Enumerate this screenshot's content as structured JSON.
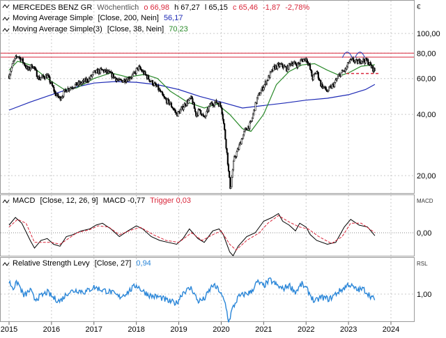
{
  "currency_symbol": "€",
  "price_panel": {
    "instrument": "MERCEDES BENZ GR",
    "interval": "Wöchentlich",
    "ohlc": {
      "o_label": "o 66,98",
      "h_label": "h 67,27",
      "l_label": "l 65,15",
      "c_label": "c 65,46",
      "change": "-1,87",
      "change_pct": "-2,78%"
    },
    "legend": [
      {
        "label": "Moving Average Simple",
        "params": "[Close, 200, Nein]",
        "value": "56,17",
        "color": "#1e2ab5"
      },
      {
        "label": "Moving Average Simple(3)",
        "params": "[Close, 38, Nein]",
        "value": "70,23",
        "color": "#2a8a2a"
      }
    ],
    "colors": {
      "up": "#ffffff",
      "down": "#000000",
      "sma200": "#1e2ab5",
      "sma38": "#2a8a2a",
      "resistance": "#d9263a",
      "support": "#d9263a",
      "pattern": "#2a3fb5",
      "change": "#d9263a"
    }
  },
  "macd_panel": {
    "label": "MACD",
    "params": "[Close, 12, 26, 9]",
    "value_label": "MACD -0,77",
    "trigger_label": "Trigger 0,03",
    "axis_title": "MACD",
    "colors": {
      "macd": "#000000",
      "trigger": "#d9263a",
      "zero": "#888888"
    }
  },
  "rsl_panel": {
    "label": "Relative Strength Levy",
    "params": "[Close, 27]",
    "value": "0,94",
    "axis_title": "RSL",
    "colors": {
      "line": "#2a86d8",
      "value": "#2a86d8"
    }
  },
  "chart_data": [
    {
      "type": "candlestick",
      "title": "MERCEDES BENZ GR Wöchentlich",
      "y_scale": "log",
      "ylim": [
        15,
        120
      ],
      "y_ticks": [
        "100,00",
        "80,00",
        "60,00",
        "40,00",
        "20,00"
      ],
      "y_tick_values": [
        100,
        80,
        60,
        40,
        20
      ],
      "x_ticks": [
        "2015",
        "2016",
        "2017",
        "2018",
        "2019",
        "2020",
        "2021",
        "2022",
        "2023",
        "2024"
      ],
      "x_range": [
        2015.0,
        2024.55
      ],
      "close_path": [
        [
          2015.0,
          62
        ],
        [
          2015.1,
          72
        ],
        [
          2015.2,
          78
        ],
        [
          2015.3,
          74
        ],
        [
          2015.45,
          66
        ],
        [
          2015.55,
          70
        ],
        [
          2015.7,
          60
        ],
        [
          2015.9,
          62
        ],
        [
          2016.0,
          56
        ],
        [
          2016.1,
          50
        ],
        [
          2016.2,
          48
        ],
        [
          2016.35,
          53
        ],
        [
          2016.5,
          55
        ],
        [
          2016.7,
          57
        ],
        [
          2016.9,
          60
        ],
        [
          2017.0,
          64
        ],
        [
          2017.2,
          66
        ],
        [
          2017.4,
          63
        ],
        [
          2017.6,
          58
        ],
        [
          2017.8,
          60
        ],
        [
          2017.95,
          63
        ],
        [
          2018.0,
          66
        ],
        [
          2018.05,
          68
        ],
        [
          2018.2,
          63
        ],
        [
          2018.35,
          58
        ],
        [
          2018.5,
          54
        ],
        [
          2018.65,
          48
        ],
        [
          2018.8,
          45
        ],
        [
          2018.95,
          40
        ],
        [
          2019.05,
          42
        ],
        [
          2019.15,
          45
        ],
        [
          2019.3,
          48
        ],
        [
          2019.4,
          40
        ],
        [
          2019.5,
          42
        ],
        [
          2019.6,
          38
        ],
        [
          2019.75,
          45
        ],
        [
          2019.9,
          46
        ],
        [
          2020.0,
          44
        ],
        [
          2020.1,
          30
        ],
        [
          2020.18,
          20
        ],
        [
          2020.22,
          17
        ],
        [
          2020.3,
          24
        ],
        [
          2020.4,
          27
        ],
        [
          2020.55,
          33
        ],
        [
          2020.7,
          36
        ],
        [
          2020.85,
          48
        ],
        [
          2021.0,
          55
        ],
        [
          2021.1,
          60
        ],
        [
          2021.25,
          68
        ],
        [
          2021.4,
          70
        ],
        [
          2021.55,
          67
        ],
        [
          2021.65,
          72
        ],
        [
          2021.8,
          70
        ],
        [
          2021.9,
          74
        ],
        [
          2022.0,
          75
        ],
        [
          2022.05,
          72
        ],
        [
          2022.15,
          60
        ],
        [
          2022.25,
          65
        ],
        [
          2022.35,
          56
        ],
        [
          2022.5,
          52
        ],
        [
          2022.65,
          56
        ],
        [
          2022.8,
          63
        ],
        [
          2022.95,
          67
        ],
        [
          2023.0,
          72
        ],
        [
          2023.1,
          74
        ],
        [
          2023.2,
          72
        ],
        [
          2023.3,
          74
        ],
        [
          2023.45,
          73
        ],
        [
          2023.55,
          68
        ],
        [
          2023.62,
          65.46
        ]
      ],
      "sma200_path": [
        [
          2015.0,
          42
        ],
        [
          2015.5,
          46
        ],
        [
          2016.0,
          50
        ],
        [
          2016.5,
          54
        ],
        [
          2017.0,
          57
        ],
        [
          2017.5,
          58
        ],
        [
          2018.0,
          57.5
        ],
        [
          2018.5,
          56
        ],
        [
          2019.0,
          53
        ],
        [
          2019.5,
          49
        ],
        [
          2020.0,
          46
        ],
        [
          2020.5,
          43
        ],
        [
          2020.9,
          44
        ],
        [
          2021.5,
          45.5
        ],
        [
          2022.0,
          47
        ],
        [
          2022.5,
          48
        ],
        [
          2023.0,
          50
        ],
        [
          2023.4,
          53
        ],
        [
          2023.62,
          56.17
        ]
      ],
      "sma38_path": [
        [
          2015.0,
          66
        ],
        [
          2015.2,
          73
        ],
        [
          2015.5,
          70
        ],
        [
          2015.9,
          60
        ],
        [
          2016.3,
          53
        ],
        [
          2016.6,
          54
        ],
        [
          2017.0,
          60
        ],
        [
          2017.4,
          64
        ],
        [
          2017.8,
          61
        ],
        [
          2018.2,
          63
        ],
        [
          2018.5,
          60
        ],
        [
          2018.8,
          52
        ],
        [
          2019.2,
          46
        ],
        [
          2019.6,
          43
        ],
        [
          2019.9,
          45
        ],
        [
          2020.2,
          40
        ],
        [
          2020.5,
          34
        ],
        [
          2020.7,
          33
        ],
        [
          2021.0,
          40
        ],
        [
          2021.3,
          56
        ],
        [
          2021.6,
          65
        ],
        [
          2021.9,
          70
        ],
        [
          2022.2,
          71
        ],
        [
          2022.5,
          66
        ],
        [
          2022.8,
          62
        ],
        [
          2023.0,
          64
        ],
        [
          2023.3,
          69
        ],
        [
          2023.62,
          70.23
        ]
      ],
      "resistance_levels": [
        80,
        76.5
      ],
      "support_level": 63.5,
      "support_x": [
        2022.95,
        2023.62
      ]
    },
    {
      "type": "line",
      "title": "MACD [Close, 12, 26, 9]",
      "y_ticks": [
        "0,00"
      ],
      "y_tick_values": [
        0
      ],
      "ylim": [
        -7,
        7
      ],
      "series": [
        {
          "name": "MACD",
          "values": [
            [
              2015.0,
              2
            ],
            [
              2015.15,
              4
            ],
            [
              2015.3,
              2.5
            ],
            [
              2015.5,
              -2
            ],
            [
              2015.6,
              -4
            ],
            [
              2015.75,
              -2
            ],
            [
              2015.9,
              -1.5
            ],
            [
              2016.05,
              -3
            ],
            [
              2016.2,
              -3.5
            ],
            [
              2016.35,
              -1
            ],
            [
              2016.5,
              -0.5
            ],
            [
              2016.7,
              0.5
            ],
            [
              2016.9,
              1
            ],
            [
              2017.05,
              2
            ],
            [
              2017.2,
              2.5
            ],
            [
              2017.4,
              1
            ],
            [
              2017.6,
              -1
            ],
            [
              2017.8,
              0.5
            ],
            [
              2018.0,
              1.8
            ],
            [
              2018.15,
              1
            ],
            [
              2018.35,
              -1
            ],
            [
              2018.55,
              -2
            ],
            [
              2018.75,
              -2.5
            ],
            [
              2018.95,
              -3
            ],
            [
              2019.1,
              -1.5
            ],
            [
              2019.25,
              1
            ],
            [
              2019.45,
              -1.5
            ],
            [
              2019.6,
              -2.5
            ],
            [
              2019.8,
              0.5
            ],
            [
              2019.95,
              1
            ],
            [
              2020.05,
              -0.5
            ],
            [
              2020.2,
              -5
            ],
            [
              2020.28,
              -6
            ],
            [
              2020.4,
              -3.5
            ],
            [
              2020.6,
              -1
            ],
            [
              2020.8,
              0
            ],
            [
              2021.0,
              3
            ],
            [
              2021.2,
              4
            ],
            [
              2021.35,
              5
            ],
            [
              2021.45,
              3
            ],
            [
              2021.6,
              2
            ],
            [
              2021.75,
              0.5
            ],
            [
              2021.85,
              2.5
            ],
            [
              2022.0,
              1.5
            ],
            [
              2022.1,
              -0.5
            ],
            [
              2022.25,
              -2
            ],
            [
              2022.5,
              -3
            ],
            [
              2022.7,
              -2.5
            ],
            [
              2022.9,
              1.5
            ],
            [
              2023.05,
              3.5
            ],
            [
              2023.25,
              2
            ],
            [
              2023.45,
              1.5
            ],
            [
              2023.62,
              -0.77
            ]
          ]
        },
        {
          "name": "Trigger",
          "values": [
            [
              2015.0,
              1.5
            ],
            [
              2015.2,
              3.5
            ],
            [
              2015.4,
              2.5
            ],
            [
              2015.6,
              -2.5
            ],
            [
              2015.8,
              -2.5
            ],
            [
              2016.0,
              -2.5
            ],
            [
              2016.2,
              -3
            ],
            [
              2016.4,
              -1.5
            ],
            [
              2016.6,
              0
            ],
            [
              2016.9,
              0.8
            ],
            [
              2017.1,
              1.8
            ],
            [
              2017.35,
              1.5
            ],
            [
              2017.6,
              -0.5
            ],
            [
              2017.9,
              0.8
            ],
            [
              2018.1,
              1.4
            ],
            [
              2018.4,
              -0.5
            ],
            [
              2018.7,
              -2
            ],
            [
              2019.0,
              -2.5
            ],
            [
              2019.3,
              0
            ],
            [
              2019.55,
              -2
            ],
            [
              2019.8,
              -0.5
            ],
            [
              2020.0,
              0.5
            ],
            [
              2020.2,
              -3
            ],
            [
              2020.35,
              -4.5
            ],
            [
              2020.6,
              -2
            ],
            [
              2020.9,
              0
            ],
            [
              2021.1,
              2.5
            ],
            [
              2021.35,
              4.5
            ],
            [
              2021.6,
              2.8
            ],
            [
              2021.85,
              1.5
            ],
            [
              2022.05,
              1
            ],
            [
              2022.3,
              -1
            ],
            [
              2022.6,
              -2.8
            ],
            [
              2022.85,
              -1
            ],
            [
              2023.05,
              2.5
            ],
            [
              2023.3,
              2.5
            ],
            [
              2023.62,
              0.03
            ]
          ]
        }
      ]
    },
    {
      "type": "line",
      "title": "Relative Strength Levy [Close, 27]",
      "y_ticks": [
        "1,00"
      ],
      "y_tick_values": [
        1.0
      ],
      "ylim": [
        0.55,
        1.4
      ],
      "series": [
        {
          "name": "Relative Strength Levy",
          "values": [
            [
              2015.0,
              1.12
            ],
            [
              2015.1,
              1.06
            ],
            [
              2015.2,
              1.12
            ],
            [
              2015.35,
              0.98
            ],
            [
              2015.5,
              1.04
            ],
            [
              2015.6,
              0.95
            ],
            [
              2015.75,
              0.98
            ],
            [
              2015.9,
              1.02
            ],
            [
              2016.05,
              0.96
            ],
            [
              2016.2,
              0.93
            ],
            [
              2016.4,
              1.02
            ],
            [
              2016.6,
              1.04
            ],
            [
              2016.8,
              1.02
            ],
            [
              2017.0,
              1.07
            ],
            [
              2017.2,
              1.04
            ],
            [
              2017.4,
              1.02
            ],
            [
              2017.6,
              0.97
            ],
            [
              2017.8,
              1.02
            ],
            [
              2018.0,
              1.09
            ],
            [
              2018.15,
              1.03
            ],
            [
              2018.35,
              0.98
            ],
            [
              2018.55,
              0.97
            ],
            [
              2018.75,
              0.93
            ],
            [
              2018.95,
              0.91
            ],
            [
              2019.1,
              1.02
            ],
            [
              2019.3,
              1.06
            ],
            [
              2019.45,
              0.93
            ],
            [
              2019.6,
              0.95
            ],
            [
              2019.8,
              1.09
            ],
            [
              2019.95,
              1.04
            ],
            [
              2020.1,
              0.9
            ],
            [
              2020.18,
              0.72
            ],
            [
              2020.25,
              0.84
            ],
            [
              2020.4,
              0.97
            ],
            [
              2020.55,
              1.0
            ],
            [
              2020.7,
              1.02
            ],
            [
              2020.85,
              1.12
            ],
            [
              2021.0,
              1.08
            ],
            [
              2021.15,
              1.14
            ],
            [
              2021.3,
              1.09
            ],
            [
              2021.45,
              1.05
            ],
            [
              2021.6,
              1.09
            ],
            [
              2021.75,
              1.02
            ],
            [
              2021.9,
              1.1
            ],
            [
              2022.05,
              1.03
            ],
            [
              2022.2,
              0.92
            ],
            [
              2022.35,
              0.97
            ],
            [
              2022.55,
              0.95
            ],
            [
              2022.75,
              1.02
            ],
            [
              2022.9,
              1.06
            ],
            [
              2023.0,
              1.1
            ],
            [
              2023.2,
              1.04
            ],
            [
              2023.35,
              1.05
            ],
            [
              2023.5,
              0.99
            ],
            [
              2023.62,
              0.94
            ]
          ]
        }
      ]
    }
  ]
}
